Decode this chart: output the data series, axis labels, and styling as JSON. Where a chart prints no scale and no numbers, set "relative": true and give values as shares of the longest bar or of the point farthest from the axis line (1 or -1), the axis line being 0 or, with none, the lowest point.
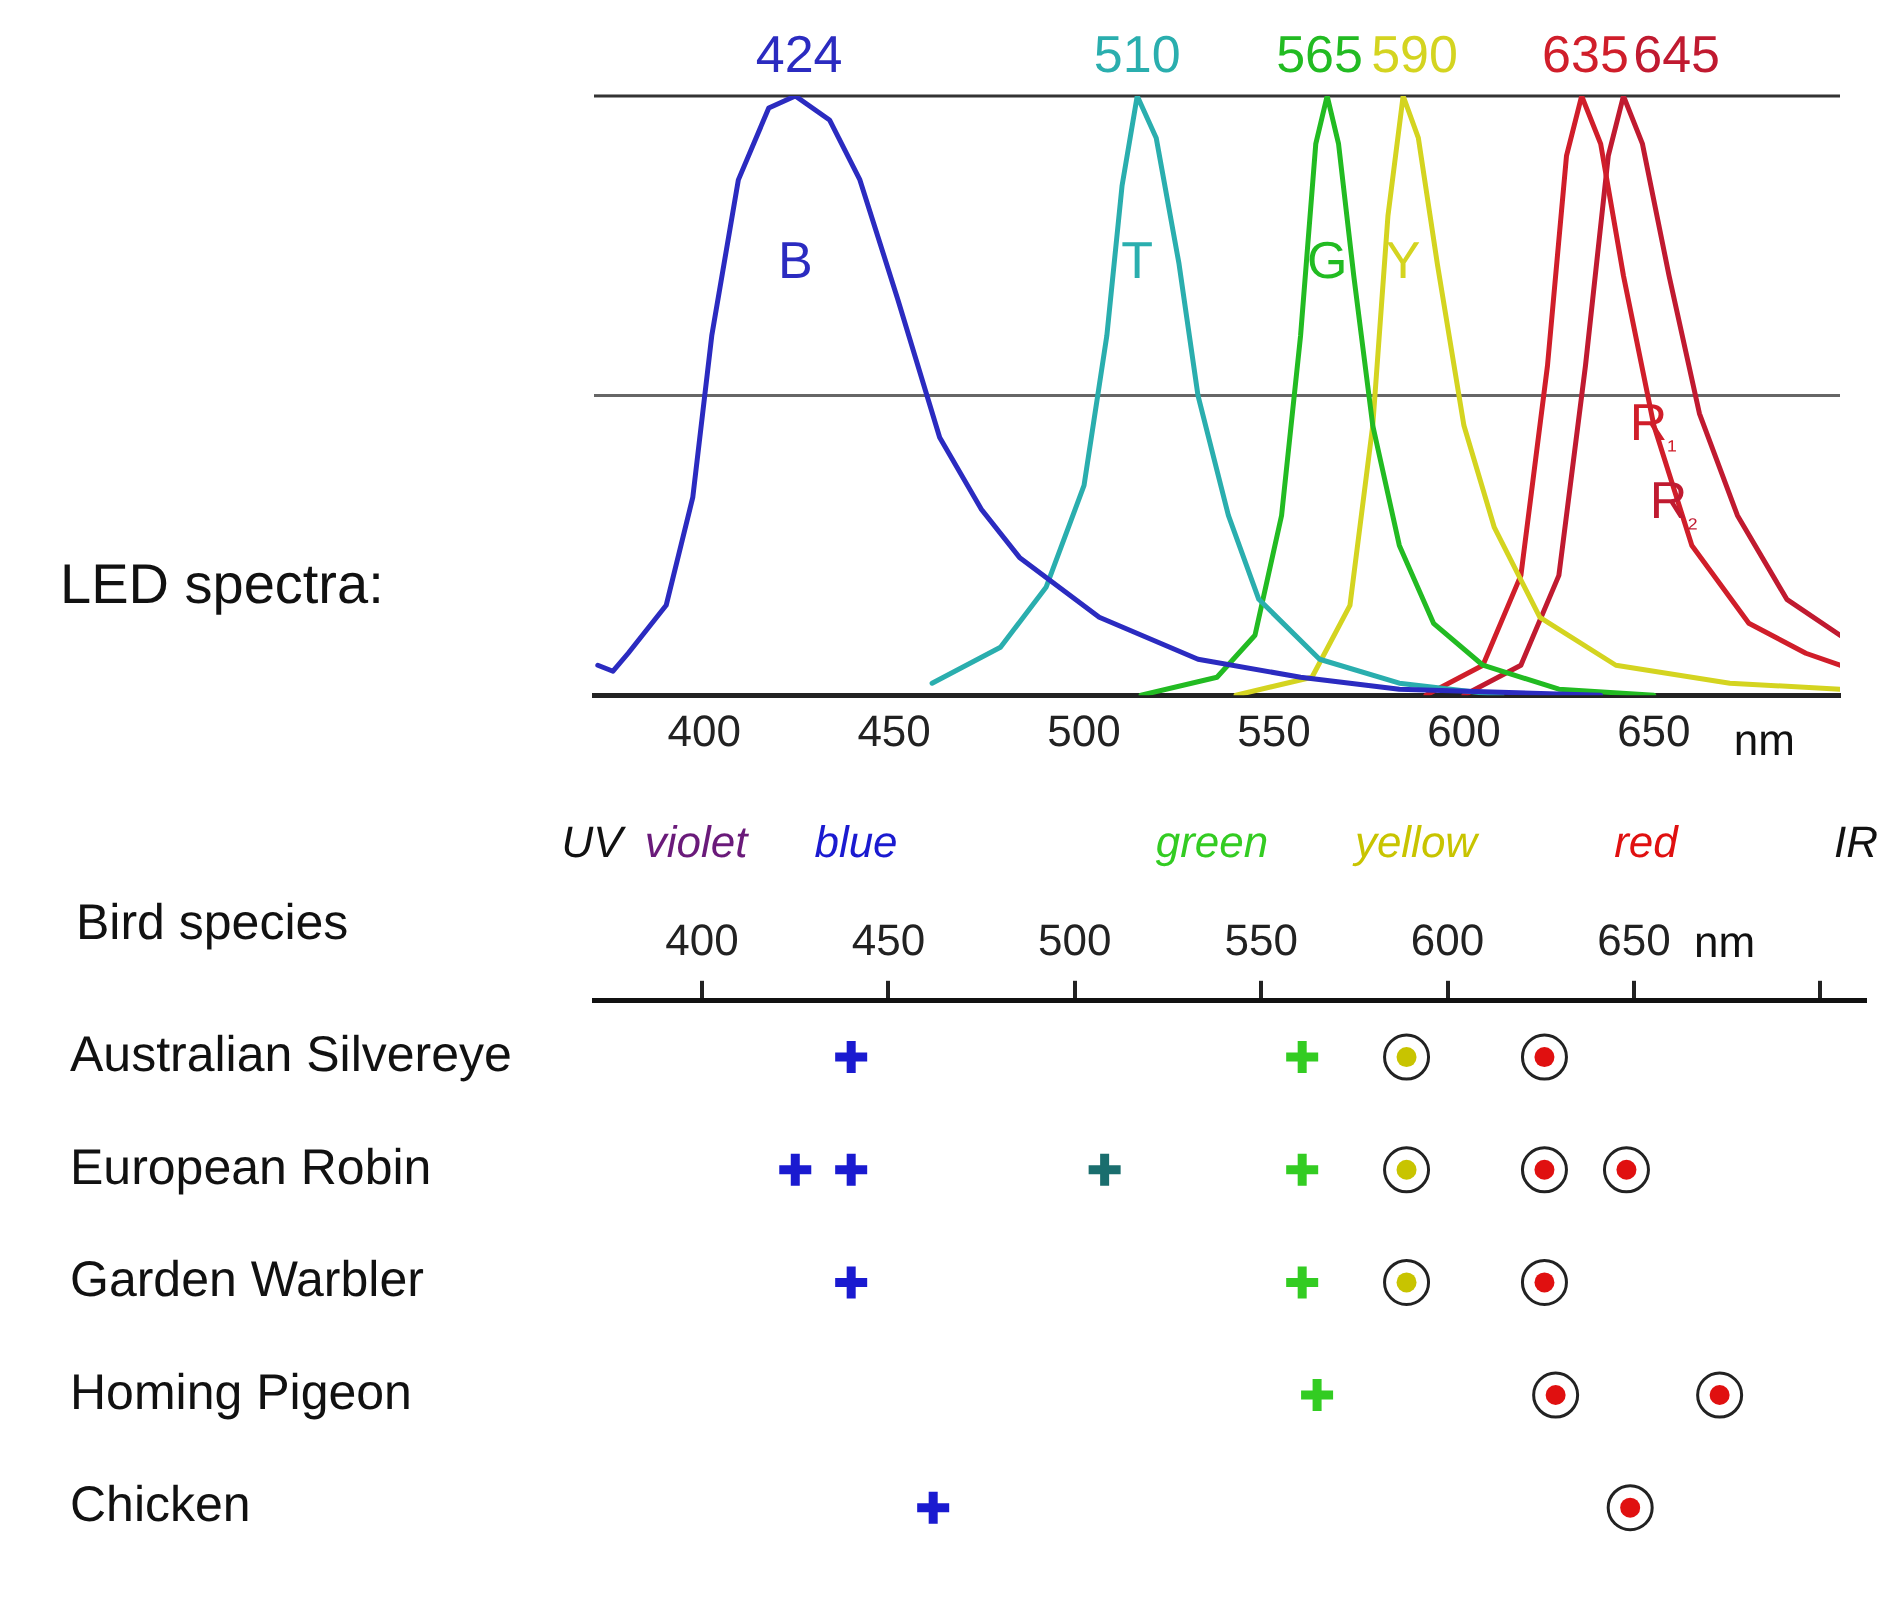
{
  "chart_data": [
    {
      "type": "line",
      "relative": true,
      "ylabel": "LED spectra:",
      "xlabel": "nm",
      "xlim": [
        371,
        699
      ],
      "xticks": [
        400,
        450,
        500,
        550,
        600,
        650
      ],
      "series": [
        {
          "name": "B",
          "color": "#2b2bc0",
          "x": [
            372,
            376,
            380,
            390,
            397,
            402,
            409,
            417,
            424,
            433,
            441,
            451,
            462,
            473,
            483,
            504,
            530,
            557,
            583,
            636
          ],
          "values": [
            0.05,
            0.04,
            0.07,
            0.15,
            0.33,
            0.6,
            0.86,
            0.98,
            1,
            0.96,
            0.86,
            0.66,
            0.43,
            0.31,
            0.23,
            0.13,
            0.06,
            0.03,
            0.01,
            0
          ]
        },
        {
          "name": "T",
          "color": "#2aaeae",
          "x": [
            460,
            478,
            490,
            500,
            506,
            510,
            514,
            519,
            525,
            530,
            538,
            546,
            562,
            583,
            610
          ],
          "values": [
            0.02,
            0.08,
            0.18,
            0.35,
            0.6,
            0.85,
            1,
            0.93,
            0.72,
            0.5,
            0.3,
            0.16,
            0.06,
            0.02,
            0
          ]
        },
        {
          "name": "G",
          "color": "#22bb22",
          "x": [
            515,
            535,
            545,
            552,
            557,
            561,
            564,
            567,
            571,
            576,
            583,
            592,
            605,
            625,
            650
          ],
          "values": [
            0,
            0.03,
            0.1,
            0.3,
            0.6,
            0.92,
            1,
            0.92,
            0.7,
            0.45,
            0.25,
            0.12,
            0.05,
            0.01,
            0
          ]
        },
        {
          "name": "Y",
          "color": "#d4d420",
          "x": [
            540,
            560,
            570,
            576,
            580,
            584,
            588,
            593,
            600,
            608,
            620,
            640,
            670,
            699
          ],
          "values": [
            0,
            0.03,
            0.15,
            0.45,
            0.8,
            1,
            0.93,
            0.72,
            0.45,
            0.28,
            0.13,
            0.05,
            0.02,
            0.01
          ]
        },
        {
          "name": "R₁",
          "color": "#d01e2a",
          "x": [
            590,
            605,
            615,
            622,
            627,
            631,
            636,
            642,
            650,
            660,
            675,
            690,
            699
          ],
          "values": [
            0,
            0.05,
            0.2,
            0.55,
            0.9,
            1,
            0.92,
            0.7,
            0.45,
            0.25,
            0.12,
            0.07,
            0.05
          ]
        },
        {
          "name": "R₂",
          "color": "#c01a30",
          "x": [
            600,
            615,
            625,
            632,
            638,
            642,
            647,
            654,
            662,
            672,
            685,
            699
          ],
          "values": [
            0,
            0.05,
            0.2,
            0.55,
            0.9,
            1,
            0.92,
            0.7,
            0.47,
            0.3,
            0.16,
            0.1
          ]
        }
      ],
      "ref_lines": [
        {
          "axis": "y",
          "value": 1,
          "color": "#333333"
        },
        {
          "axis": "y",
          "value": 0.5,
          "color": "#666666"
        }
      ],
      "annotations": [
        {
          "text": "424",
          "x": 425,
          "y": 1
        },
        {
          "text": "510",
          "x": 514,
          "y": 1
        },
        {
          "text": "565",
          "x": 562,
          "y": 1
        },
        {
          "text": "590",
          "x": 587,
          "y": 1
        },
        {
          "text": "635",
          "x": 632,
          "y": 1
        },
        {
          "text": "645",
          "x": 656,
          "y": 1
        }
      ]
    },
    {
      "type": "scatter",
      "orientation": "horizontal",
      "ylabel": "Bird species",
      "xlabel": "nm",
      "xlim": [
        371,
        712
      ],
      "xticks": [
        400,
        450,
        500,
        550,
        600,
        650,
        {
          "value": 700,
          "label": null
        }
      ],
      "categories": [
        "Australian Silvereye",
        "European Robin",
        "Garden Warbler",
        "Homing Pigeon",
        "Chicken"
      ],
      "series": [
        {
          "color": "#1a1ad0",
          "marker": "cross",
          "values": [
            440,
            425,
            440,
            null,
            462
          ]
        },
        {
          "color": "#1a1ad0",
          "marker": "cross",
          "values": [
            null,
            440,
            null,
            null,
            null
          ]
        },
        {
          "color": "#1a6e6e",
          "marker": "cross",
          "values": [
            null,
            508,
            null,
            null,
            null
          ]
        },
        {
          "color": "#33cc22",
          "marker": "cross",
          "values": [
            561,
            561,
            561,
            565,
            null
          ]
        },
        {
          "color": "#c8c400",
          "marker": "circle",
          "values": [
            589,
            589,
            589,
            null,
            null
          ]
        },
        {
          "color": "#e01010",
          "marker": "circle",
          "values": [
            626,
            626,
            626,
            629,
            null
          ]
        },
        {
          "color": "#e01010",
          "marker": "circle",
          "values": [
            null,
            648,
            null,
            673,
            649
          ]
        }
      ],
      "annotations": [
        "UV",
        "violet",
        "blue",
        "green",
        "yellow",
        "red",
        "IR"
      ]
    }
  ]
}
